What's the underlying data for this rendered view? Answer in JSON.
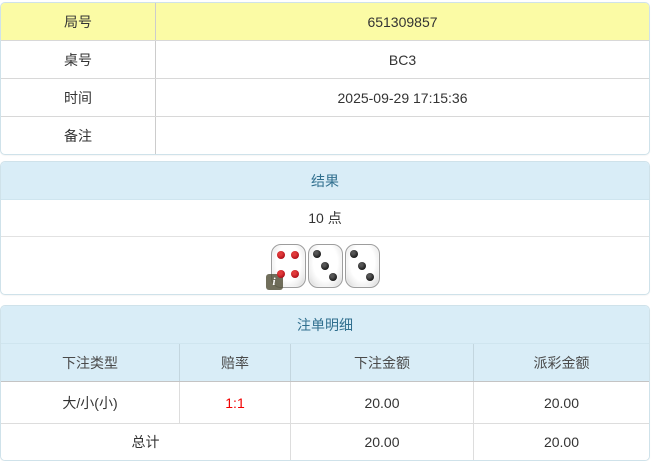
{
  "colors": {
    "highlight_yellow": "#fbfba5",
    "header_background": "#d9edf7",
    "header_text": "#31708f",
    "odds_red": "#f20000",
    "panel_border": "#cfe2ea"
  },
  "info_table": {
    "rows": [
      {
        "label": "局号",
        "value": "651309857",
        "highlight": true
      },
      {
        "label": "桌号",
        "value": "BC3",
        "highlight": false
      },
      {
        "label": "时间",
        "value": "2025-09-29 17:15:36",
        "highlight": false
      },
      {
        "label": "备注",
        "value": "",
        "highlight": false
      }
    ]
  },
  "result_panel": {
    "title": "结果",
    "points": "10 点",
    "dice": [
      {
        "value": 4,
        "color": "red"
      },
      {
        "value": 3,
        "color": "black"
      },
      {
        "value": 3,
        "color": "black"
      }
    ],
    "info_badge": "i"
  },
  "bets_panel": {
    "title": "注单明细",
    "columns": [
      "下注类型",
      "赔率",
      "下注金额",
      "派彩金额"
    ],
    "rows": [
      {
        "bet_type": "大/小(小)",
        "odds": "1:1",
        "bet_amount": "20.00",
        "payout_amount": "20.00"
      }
    ],
    "total": {
      "label": "总计",
      "odds": "",
      "bet_amount": "20.00",
      "payout_amount": "20.00"
    }
  }
}
